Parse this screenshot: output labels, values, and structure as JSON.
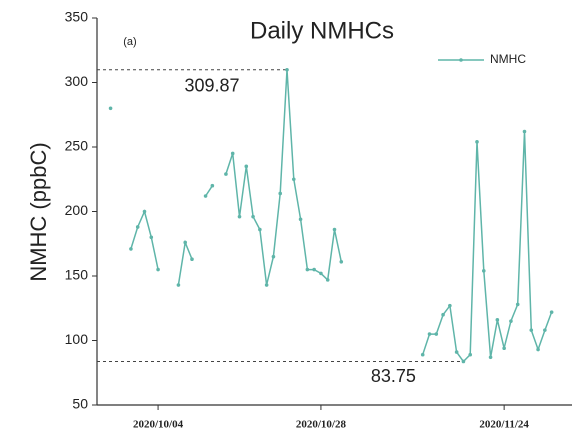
{
  "chart_data": {
    "type": "line",
    "title": "Daily NMHCs",
    "panel_label": "(a)",
    "y_label": "NMHC (ppbC)",
    "x": [
      "2020/09/27",
      null,
      "2020/09/30",
      "2020/10/01",
      "2020/10/02",
      "2020/10/03",
      "2020/10/04",
      null,
      "2020/10/07",
      "2020/10/08",
      "2020/10/09",
      null,
      "2020/10/11",
      "2020/10/12",
      null,
      "2020/10/14",
      "2020/10/15",
      "2020/10/16",
      "2020/10/17",
      "2020/10/18",
      "2020/10/19",
      "2020/10/20",
      "2020/10/21",
      "2020/10/22",
      "2020/10/23",
      "2020/10/24",
      "2020/10/25",
      "2020/10/26",
      "2020/10/27",
      "2020/10/28",
      "2020/10/29",
      "2020/10/30",
      "2020/10/31",
      null,
      "2020/11/12",
      "2020/11/13",
      "2020/11/14",
      "2020/11/15",
      "2020/11/16",
      "2020/11/17",
      "2020/11/18",
      "2020/11/19",
      "2020/11/20",
      "2020/11/21",
      "2020/11/22",
      "2020/11/23",
      "2020/11/24",
      "2020/11/25",
      "2020/11/26",
      "2020/11/27",
      "2020/11/28",
      "2020/11/29",
      "2020/11/30",
      "2020/12/01"
    ],
    "series": [
      {
        "name": "NMHC",
        "color": "#5fb5a9",
        "values": [
          280,
          null,
          171,
          188,
          200,
          180,
          155,
          null,
          143,
          176,
          163,
          null,
          212,
          220,
          null,
          229,
          245,
          196,
          235,
          196,
          186,
          143,
          165,
          214,
          309.87,
          225,
          194,
          155,
          155,
          152,
          147,
          186,
          161,
          null,
          89,
          105,
          105,
          120,
          127,
          91,
          83.75,
          89,
          254,
          154,
          87,
          116,
          94,
          115,
          128,
          262,
          108,
          93,
          108,
          122
        ]
      }
    ],
    "reference_lines": [
      309.87,
      83.75
    ],
    "xlim": [
      "2020/09/25",
      "2020/12/04"
    ],
    "xticks": [
      "2020/10/04",
      "2020/10/28",
      "2020/11/24"
    ],
    "ylim": [
      50,
      350
    ],
    "yticks": [
      50,
      100,
      150,
      200,
      250,
      300,
      350
    ],
    "legend": "upper right"
  }
}
